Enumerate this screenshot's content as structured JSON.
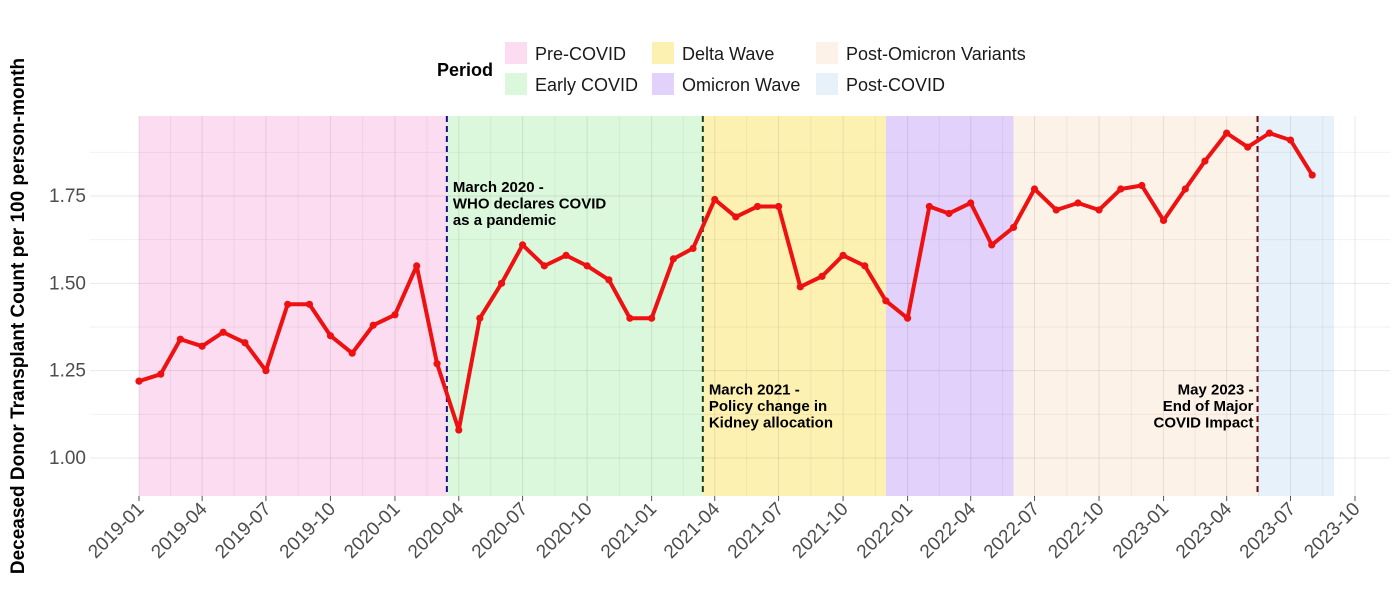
{
  "chart_data": {
    "type": "line",
    "title": "",
    "xlabel": "",
    "ylabel": "Deceased Donor Transplant Count per 100 person-month",
    "ylim": [
      0.88,
      1.97
    ],
    "y_ticks": [
      1.0,
      1.25,
      1.5,
      1.75
    ],
    "y_tick_labels": [
      "1.00",
      "1.25",
      "1.50",
      "1.75"
    ],
    "x_ticks": [
      "2019-01",
      "2019-04",
      "2019-07",
      "2019-10",
      "2020-01",
      "2020-04",
      "2020-07",
      "2020-10",
      "2021-01",
      "2021-04",
      "2021-07",
      "2021-10",
      "2022-01",
      "2022-04",
      "2022-07",
      "2022-10",
      "2023-01",
      "2023-04",
      "2023-07",
      "2023-10"
    ],
    "grid": true,
    "legend_position": "top",
    "legend_title": "Period",
    "periods": [
      {
        "name": "Pre-COVID",
        "start": "2019-01",
        "end": "2020-03-15",
        "color": "#fcdcf0"
      },
      {
        "name": "Early COVID",
        "start": "2020-03-15",
        "end": "2021-03-15",
        "color": "#dbf8dd"
      },
      {
        "name": "Delta Wave",
        "start": "2021-03-15",
        "end": "2021-12",
        "color": "#fdf1b2"
      },
      {
        "name": "Omicron Wave",
        "start": "2021-12",
        "end": "2022-06",
        "color": "#e2d1fa"
      },
      {
        "name": "Post-Omicron Variants",
        "start": "2022-06",
        "end": "2023-05-15",
        "color": "#fdf2e8"
      },
      {
        "name": "Post-COVID",
        "start": "2023-05-15",
        "end": "2023-09",
        "color": "#e6f1fa"
      }
    ],
    "legend_layout": [
      [
        "Pre-COVID",
        "Delta Wave",
        "Post-Omicron Variants"
      ],
      [
        "Early COVID",
        "Omicron Wave",
        "Post-COVID"
      ]
    ],
    "annotations": [
      {
        "date": "2020-03-15",
        "line_color": "#1a0d8c",
        "lines": [
          "March 2020 -",
          "WHO declares COVID",
          "as a pandemic"
        ],
        "y": 1.75,
        "anchor": "start"
      },
      {
        "date": "2021-03-15",
        "line_color": "#1a3d1a",
        "lines": [
          "March 2021 -",
          "Policy change in",
          "Kidney allocation"
        ],
        "y": 1.17,
        "anchor": "start"
      },
      {
        "date": "2023-05-15",
        "line_color": "#6b0a0a",
        "lines": [
          "May 2023 -",
          "End of Major",
          "COVID Impact"
        ],
        "y": 1.17,
        "anchor": "end"
      }
    ],
    "series": [
      {
        "color": "#ee1111",
        "x": [
          "2019-01",
          "2019-02",
          "2019-03",
          "2019-04",
          "2019-05",
          "2019-06",
          "2019-07",
          "2019-08",
          "2019-09",
          "2019-10",
          "2019-11",
          "2019-12",
          "2020-01",
          "2020-02",
          "2020-03",
          "2020-04",
          "2020-05",
          "2020-06",
          "2020-07",
          "2020-08",
          "2020-09",
          "2020-10",
          "2020-11",
          "2020-12",
          "2021-01",
          "2021-02",
          "2021-03",
          "2021-04",
          "2021-05",
          "2021-06",
          "2021-07",
          "2021-08",
          "2021-09",
          "2021-10",
          "2021-11",
          "2021-12",
          "2022-01",
          "2022-02",
          "2022-03",
          "2022-04",
          "2022-05",
          "2022-06",
          "2022-07",
          "2022-08",
          "2022-09",
          "2022-10",
          "2022-11",
          "2022-12",
          "2023-01",
          "2023-02",
          "2023-03",
          "2023-04",
          "2023-05",
          "2023-06",
          "2023-07",
          "2023-08"
        ],
        "values": [
          1.22,
          1.24,
          1.34,
          1.32,
          1.36,
          1.33,
          1.25,
          1.44,
          1.44,
          1.35,
          1.3,
          1.38,
          1.41,
          1.55,
          1.27,
          1.08,
          1.4,
          1.5,
          1.61,
          1.55,
          1.58,
          1.55,
          1.51,
          1.4,
          1.4,
          1.57,
          1.6,
          1.74,
          1.69,
          1.72,
          1.72,
          1.49,
          1.52,
          1.58,
          1.55,
          1.45,
          1.4,
          1.72,
          1.7,
          1.73,
          1.61,
          1.66,
          1.77,
          1.71,
          1.73,
          1.71,
          1.77,
          1.78,
          1.68,
          1.77,
          1.85,
          1.93,
          1.89,
          1.93,
          1.91,
          1.81
        ]
      }
    ]
  }
}
